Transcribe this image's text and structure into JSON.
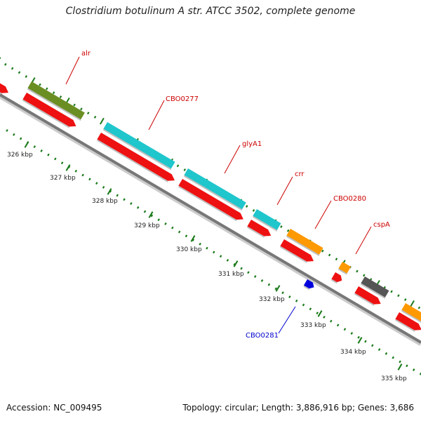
{
  "title": "Clostridium botulinum A str. ATCC 3502, complete genome",
  "footer": {
    "accession": "Accession: NC_009495",
    "topology": "Topology: circular; Length: 3,886,916 bp; Genes: 3,686"
  },
  "scale_ticks": [
    "326 kbp",
    "327 kbp",
    "328 kbp",
    "329 kbp",
    "330 kbp",
    "331 kbp",
    "332 kbp",
    "333 kbp",
    "334 kbp",
    "335 kbp"
  ],
  "gene_labels": [
    {
      "name": "alr",
      "color": "#cc0000"
    },
    {
      "name": "CBO0277",
      "color": "#cc0000"
    },
    {
      "name": "glyA1",
      "color": "#cc0000"
    },
    {
      "name": "crr",
      "color": "#cc0000"
    },
    {
      "name": "CBO0280",
      "color": "#cc0000"
    },
    {
      "name": "cspA",
      "color": "#cc0000"
    },
    {
      "name": "CBO0281",
      "color": "#0000cc"
    }
  ],
  "colors": {
    "cds": "#ee1111",
    "rna": "#0000dd",
    "olive": "#6b8e23",
    "cyan": "#1fc6cc",
    "orange": "#ff9900",
    "gray": "#555555",
    "ticks": "#1a7a1a",
    "backbone": "#777777"
  }
}
